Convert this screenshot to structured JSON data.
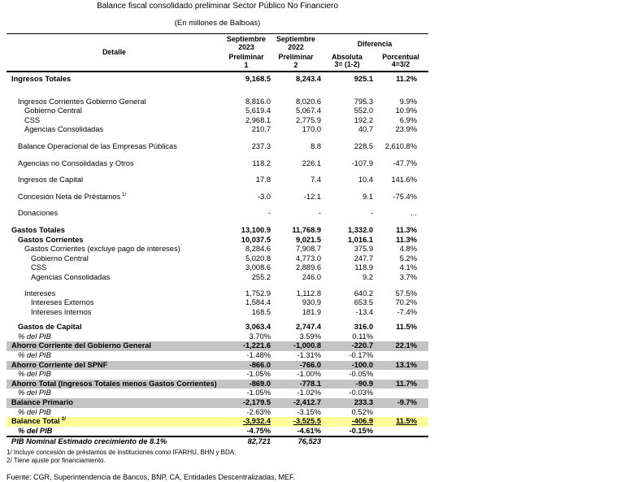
{
  "title": "Balance fiscal consolidado preliminar Sector Público No Financiero",
  "subtitle": "(En millones de Balboas)",
  "table": {
    "header": {
      "detail": "Detalle",
      "col1": [
        "Septiembre",
        "2023",
        "Preliminar",
        "1"
      ],
      "col2": [
        "Septiembre",
        "2022",
        "Preliminar",
        "2"
      ],
      "diferencia": "Diferencia",
      "col3": [
        "Absoluta",
        "3= (1-2)"
      ],
      "col4": [
        "Porcentual",
        "4=3/2"
      ]
    },
    "rows": [
      {
        "label": "Ingresos Totales",
        "indent": 0,
        "style": "bold",
        "vstyle": "bold",
        "values": [
          "9,168.5",
          "8,243.4",
          "925.1",
          "11.2%"
        ]
      },
      {
        "label": "Ingresos Corrientes Gobierno General",
        "indent": 1,
        "gap": 16,
        "values": [
          "8,816.0",
          "8,020.6",
          "795.3",
          "9.9%"
        ]
      },
      {
        "label": "Gobierno Central",
        "indent": 2,
        "values": [
          "5,619.4",
          "5,067.4",
          "552.0",
          "10.9%"
        ]
      },
      {
        "label": "CSS",
        "indent": 2,
        "values": [
          "2,968.1",
          "2,775.9",
          "192.2",
          "6.9%"
        ]
      },
      {
        "label": "Agencias Consolidadas",
        "indent": 2,
        "values": [
          "210.7",
          "170.0",
          "40.7",
          "23.9%"
        ]
      },
      {
        "label": "Balance Operacional de las Empresas Públicas",
        "indent": 1,
        "gap": 9,
        "values": [
          "237.3",
          "8.8",
          "228.5",
          "2,610.8%"
        ]
      },
      {
        "label": "Agencias no Consolidadas y Otros",
        "indent": 1,
        "gap": 9,
        "values": [
          "118.2",
          "226.1",
          "-107.9",
          "-47.7%"
        ]
      },
      {
        "label": "Ingresos de Capital",
        "indent": 1,
        "gap": 9,
        "values": [
          "17.8",
          "7.4",
          "10.4",
          "141.6%"
        ]
      },
      {
        "label": "Concesión Neta de Préstamos",
        "sup": "1/",
        "indent": 1,
        "gap": 9,
        "values": [
          "-3.0",
          "-12.1",
          "9.1",
          "-75.4%"
        ]
      },
      {
        "label": "Donaciones",
        "indent": 1,
        "gap": 9,
        "values": [
          "-",
          "-",
          "-",
          "..."
        ]
      },
      {
        "label": "Gastos Totales",
        "indent": 0,
        "gap": 9,
        "style": "bold",
        "vstyle": "bold",
        "values": [
          "13,100.9",
          "11,768.9",
          "1,332.0",
          "11.3%"
        ]
      },
      {
        "label": "Gastos Corrientes",
        "indent": 1,
        "style": "bold",
        "vstyle": "bold",
        "values": [
          "10,037.5",
          "9,021.5",
          "1,016.1",
          "11.3%"
        ]
      },
      {
        "label": "Gastos Corrientes (excluye pago de intereses)",
        "indent": 2,
        "values": [
          "8,284.6",
          "7,908.7",
          "375.9",
          "4.8%"
        ]
      },
      {
        "label": "Gobierno Central",
        "indent": 3,
        "values": [
          "5,020.8",
          "4,773.0",
          "247.7",
          "5.2%"
        ]
      },
      {
        "label": "CSS",
        "indent": 3,
        "values": [
          "3,008.6",
          "2,889.6",
          "118.9",
          "4.1%"
        ]
      },
      {
        "label": "Agencias Consolidadas",
        "indent": 3,
        "values": [
          "255.2",
          "246.0",
          "9.2",
          "3.7%"
        ]
      },
      {
        "label": "Intereses",
        "indent": 2,
        "gap": 8,
        "values": [
          "1,752.9",
          "1,112.8",
          "640.2",
          "57.5%"
        ]
      },
      {
        "label": "Intereses Externos",
        "indent": 3,
        "values": [
          "1,584.4",
          "930.9",
          "653.5",
          "70.2%"
        ]
      },
      {
        "label": "Intereses Internos",
        "indent": 3,
        "values": [
          "168.5",
          "181.9",
          "-13.4",
          "-7.4%"
        ]
      },
      {
        "label": "Gastos de Capital",
        "indent": 1,
        "gap": 7,
        "style": "bold",
        "vstyle": "bold",
        "values": [
          "3,063.4",
          "2,747.4",
          "316.0",
          "11.5%"
        ]
      },
      {
        "label": "% del PIB",
        "indent": 1,
        "style": "italic",
        "values": [
          "3.70%",
          "3.59%",
          "0.11%",
          ""
        ]
      },
      {
        "label": "Ahorro Corriente del Gobierno General",
        "indent": 0,
        "style": "bold",
        "vstyle": "bold",
        "bg": "gray",
        "values": [
          "-1,221.6",
          "-1,000.8",
          "-220.7",
          "22.1%"
        ]
      },
      {
        "label": "% del PIB",
        "indent": 1,
        "style": "italic",
        "values": [
          "-1.48%",
          "-1.31%",
          "-0.17%",
          ""
        ]
      },
      {
        "label": "Ahorro Corriente del SPNF",
        "indent": 0,
        "style": "bold",
        "vstyle": "bold",
        "bg": "gray",
        "values": [
          "-866.0",
          "-766.0",
          "-100.0",
          "13.1%"
        ]
      },
      {
        "label": "% del PIB",
        "indent": 1,
        "style": "italic",
        "values": [
          "-1.05%",
          "-1.00%",
          "-0.05%",
          ""
        ]
      },
      {
        "label": "Ahorro Total (Ingresos Totales menos Gastos Corrientes)",
        "indent": 0,
        "style": "bold",
        "vstyle": "bold",
        "bg": "gray",
        "values": [
          "-869.0",
          "-778.1",
          "-90.9",
          "11.7%"
        ]
      },
      {
        "label": "% del PIB",
        "indent": 1,
        "style": "italic",
        "values": [
          "-1.05%",
          "-1.02%",
          "-0.03%",
          ""
        ]
      },
      {
        "label": "Balance Primario",
        "indent": 0,
        "style": "bold",
        "vstyle": "bold",
        "bg": "gray",
        "values": [
          "-2,179.5",
          "-2,412.7",
          "233.3",
          "-9.7%"
        ]
      },
      {
        "label": "% del PIB",
        "indent": 1,
        "style": "italic",
        "values": [
          "-2.63%",
          "-3.15%",
          "0.52%",
          ""
        ]
      },
      {
        "label": "Balance Total",
        "sup": "2/",
        "indent": 0,
        "style": "bold",
        "vstyle": "bold vu",
        "bg": "yellow",
        "values": [
          "-3,932.4",
          "-3,525.5",
          "-406.9",
          "11.5%"
        ]
      },
      {
        "label": "% del PIB",
        "indent": 1,
        "style": "bolditalic",
        "vstyle": "bold",
        "values": [
          "-4.75%",
          "-4.61%",
          "-0.15%",
          ""
        ]
      },
      {
        "label": "PIB Nominal Estimado crecimiento de 8.1%",
        "indent": 0,
        "style": "bolditalic",
        "vstyle": "bolditalic",
        "border_top": true,
        "values": [
          "82,721",
          "76,523",
          "",
          ""
        ]
      }
    ]
  },
  "footnotes": [
    "1/ Incluye concesión de préstamos de instituciones como IFARHU, BHN  y BDA.",
    "2/ Tiene ajuste por financiamiento."
  ],
  "source": "Fuente: CGR, Superintendencia de Bancos, BNP, CA, Entidades Descentralizadas, MEF."
}
